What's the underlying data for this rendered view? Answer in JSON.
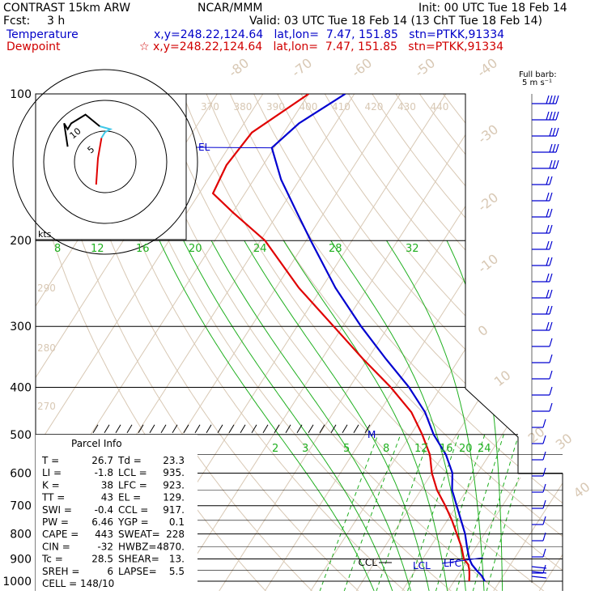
{
  "header": {
    "title": "CONTRAST 15km ARW",
    "center": "NCAR/MMM",
    "init": "Init: 00 UTC Tue 18 Feb 14",
    "fcst_label": "Fcst:",
    "fcst_value": "3 h",
    "valid": "Valid: 03 UTC Tue 18 Feb 14 (13 ChT Tue 18 Feb 14)",
    "temp_label": "Temperature",
    "temp_loc": "x,y=248.22,124.64   lat,lon=  7.47, 151.85   stn=PTKK,91334",
    "dew_label": "Dewpoint",
    "dew_loc": "☆ x,y=248.22,124.64   lat,lon=  7.47, 151.85   stn=PTKK,91334"
  },
  "chart_data": {
    "type": "line",
    "y_axis": "pressure (hPa), log scale",
    "pressure_labels": [
      "100",
      "200",
      "300",
      "400",
      "500",
      "600",
      "700",
      "800",
      "900",
      "1000"
    ],
    "isotherm_labels": [
      {
        "t": -80,
        "label": "-80"
      },
      {
        "t": -70,
        "label": "-70"
      },
      {
        "t": -60,
        "label": "-60"
      },
      {
        "t": -50,
        "label": "-50"
      },
      {
        "t": -40,
        "label": "-40"
      },
      {
        "t": -30,
        "label": "-30"
      },
      {
        "t": -20,
        "label": "-20"
      },
      {
        "t": -10,
        "label": "-10"
      },
      {
        "t": 0,
        "label": "0"
      },
      {
        "t": 10,
        "label": "10"
      },
      {
        "t": 20,
        "label": "20"
      },
      {
        "t": 30,
        "label": "30"
      },
      {
        "t": 40,
        "label": "40"
      }
    ],
    "theta_labels_top": [
      "370",
      "380",
      "390",
      "400",
      "410",
      "420",
      "430",
      "440"
    ],
    "theta_labels_left": [
      "290",
      "280",
      "270"
    ],
    "moist_adiabat_labels": [
      "8",
      "12",
      "16",
      "20",
      "24",
      "28",
      "32"
    ],
    "mixing_ratio_labels": [
      "2",
      "3",
      "5",
      "8",
      "12",
      "16",
      "20",
      "24"
    ],
    "temperature": [
      {
        "p": 1000,
        "t": 26.7
      },
      {
        "p": 975,
        "t": 25.3
      },
      {
        "p": 950,
        "t": 23.4
      },
      {
        "p": 925,
        "t": 21.6
      },
      {
        "p": 900,
        "t": 20.2
      },
      {
        "p": 850,
        "t": 18.0
      },
      {
        "p": 800,
        "t": 15.8
      },
      {
        "p": 750,
        "t": 13.0
      },
      {
        "p": 700,
        "t": 10.0
      },
      {
        "p": 650,
        "t": 6.8
      },
      {
        "p": 600,
        "t": 4.5
      },
      {
        "p": 550,
        "t": 0.5
      },
      {
        "p": 500,
        "t": -5.0
      },
      {
        "p": 450,
        "t": -10.0
      },
      {
        "p": 400,
        "t": -17.0
      },
      {
        "p": 350,
        "t": -26.0
      },
      {
        "p": 300,
        "t": -36.0
      },
      {
        "p": 250,
        "t": -47.0
      },
      {
        "p": 200,
        "t": -59.0
      },
      {
        "p": 175,
        "t": -66.0
      },
      {
        "p": 150,
        "t": -74.0
      },
      {
        "p": 129,
        "t": -80.5
      },
      {
        "p": 115,
        "t": -78.0
      },
      {
        "p": 100,
        "t": -72.0
      }
    ],
    "dewpoint": [
      {
        "p": 1000,
        "t": 23.3
      },
      {
        "p": 975,
        "t": 22.6
      },
      {
        "p": 950,
        "t": 21.8
      },
      {
        "p": 925,
        "t": 20.8
      },
      {
        "p": 900,
        "t": 19.0
      },
      {
        "p": 850,
        "t": 16.8
      },
      {
        "p": 800,
        "t": 14.0
      },
      {
        "p": 750,
        "t": 11.0
      },
      {
        "p": 700,
        "t": 7.5
      },
      {
        "p": 650,
        "t": 3.5
      },
      {
        "p": 600,
        "t": 0.0
      },
      {
        "p": 550,
        "t": -3.0
      },
      {
        "p": 500,
        "t": -7.5
      },
      {
        "p": 450,
        "t": -13.0
      },
      {
        "p": 400,
        "t": -21.0
      },
      {
        "p": 350,
        "t": -31.0
      },
      {
        "p": 300,
        "t": -42.0
      },
      {
        "p": 250,
        "t": -55.0
      },
      {
        "p": 200,
        "t": -69.0
      },
      {
        "p": 175,
        "t": -80.0
      },
      {
        "p": 160,
        "t": -87.0
      },
      {
        "p": 140,
        "t": -88.0
      },
      {
        "p": 120,
        "t": -87.0
      },
      {
        "p": 100,
        "t": -80.0
      }
    ],
    "markers": [
      {
        "label": "EL",
        "p": 129
      },
      {
        "label": "M",
        "p": 500
      },
      {
        "label": "CCL",
        "p": 917
      },
      {
        "label": "LCL",
        "p": 935
      },
      {
        "label": "LFC",
        "p": 923
      }
    ],
    "wind_barbs_note": "Full barb = 5 m s⁻¹",
    "barb_legend": [
      "Full barb:",
      "5 m s⁻¹"
    ],
    "hodograph": {
      "ring_labels": [
        "5",
        "10"
      ],
      "units": "kts",
      "points": [
        [
          4,
          -5
        ],
        [
          5,
          4
        ],
        [
          7,
          11
        ],
        [
          9,
          13
        ],
        [
          12,
          14
        ],
        [
          6,
          15
        ],
        [
          -2,
          19
        ],
        [
          -10,
          16
        ],
        [
          -12,
          14
        ],
        [
          -14,
          16
        ],
        [
          -12,
          8
        ]
      ]
    }
  },
  "parcel_info": {
    "title": "Parcel Info",
    "rows": [
      {
        "k1": "T   =",
        "v1": "26.7",
        "k2": "Td =",
        "v2": "23.3"
      },
      {
        "k1": "LI  =",
        "v1": "-1.8",
        "k2": "LCL =",
        "v2": "935."
      },
      {
        "k1": "K   =",
        "v1": "38",
        "k2": "LFC =",
        "v2": "923."
      },
      {
        "k1": "TT  =",
        "v1": "43",
        "k2": "EL  =",
        "v2": "129."
      },
      {
        "k1": "SWI =",
        "v1": "-0.4",
        "k2": "CCL =",
        "v2": "917."
      },
      {
        "k1": "PW  =",
        "v1": "6.46",
        "k2": "YGP =",
        "v2": "0.1"
      },
      {
        "k1": "CAPE =",
        "v1": "443",
        "k2": "SWEAT=",
        "v2": "228"
      },
      {
        "k1": "CIN =",
        "v1": "-32",
        "k2": "HWBZ=",
        "v2": "4870."
      },
      {
        "k1": "Tc  =",
        "v1": "28.5",
        "k2": "SHEAR=",
        "v2": "13."
      },
      {
        "k1": "SREH =",
        "v1": "6",
        "k2": "LAPSE=",
        "v2": "5.5"
      }
    ],
    "cell": "CELL = 148/10"
  },
  "colors": {
    "temperature": "#0000d0",
    "dewpoint": "#e00000",
    "isotherm": "#d8c8b4",
    "adiabat": "#20b020",
    "grid": "#000000"
  }
}
